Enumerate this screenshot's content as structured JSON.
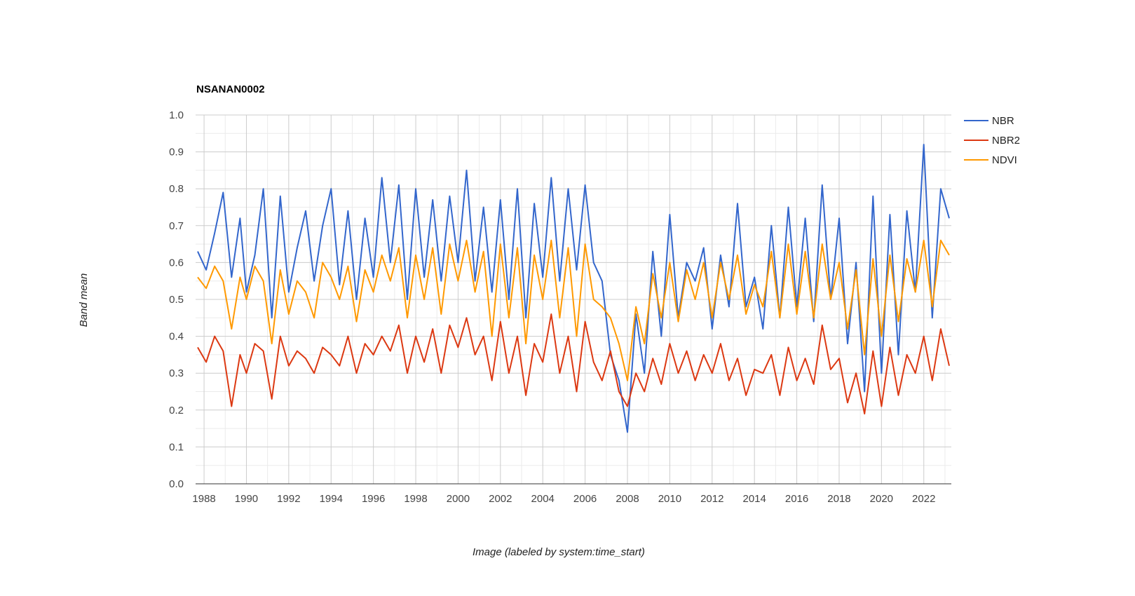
{
  "chart_data": {
    "type": "line",
    "title": "NSANAN0002",
    "xlabel": "Image (labeled by system:time_start)",
    "ylabel": "Band mean",
    "xlim": [
      1987.6,
      2023.3
    ],
    "ylim": [
      0.0,
      1.0
    ],
    "x_ticks": [
      "1988",
      "1990",
      "1992",
      "1994",
      "1996",
      "1998",
      "2000",
      "2002",
      "2004",
      "2006",
      "2008",
      "2010",
      "2012",
      "2014",
      "2016",
      "2018",
      "2020",
      "2022"
    ],
    "y_ticks": [
      "0.0",
      "0.1",
      "0.2",
      "0.3",
      "0.4",
      "0.5",
      "0.6",
      "0.7",
      "0.8",
      "0.9",
      "1.0"
    ],
    "grid": true,
    "legend_position": "right",
    "x": [
      1987.7,
      1988.1,
      1988.5,
      1988.9,
      1989.3,
      1989.7,
      1990.0,
      1990.4,
      1990.8,
      1991.2,
      1991.6,
      1992.0,
      1992.4,
      1992.8,
      1993.2,
      1993.6,
      1994.0,
      1994.4,
      1994.8,
      1995.2,
      1995.6,
      1996.0,
      1996.4,
      1996.8,
      1997.2,
      1997.6,
      1998.0,
      1998.4,
      1998.8,
      1999.2,
      1999.6,
      2000.0,
      2000.4,
      2000.8,
      2001.2,
      2001.6,
      2002.0,
      2002.4,
      2002.8,
      2003.2,
      2003.6,
      2004.0,
      2004.4,
      2004.8,
      2005.2,
      2005.6,
      2006.0,
      2006.4,
      2006.8,
      2007.2,
      2007.6,
      2008.0,
      2008.4,
      2008.8,
      2009.2,
      2009.6,
      2010.0,
      2010.4,
      2010.8,
      2011.2,
      2011.6,
      2012.0,
      2012.4,
      2012.8,
      2013.2,
      2013.6,
      2014.0,
      2014.4,
      2014.8,
      2015.2,
      2015.6,
      2016.0,
      2016.4,
      2016.8,
      2017.2,
      2017.6,
      2018.0,
      2018.4,
      2018.8,
      2019.2,
      2019.6,
      2020.0,
      2020.4,
      2020.8,
      2021.2,
      2021.6,
      2022.0,
      2022.4,
      2022.8,
      2023.2
    ],
    "series": [
      {
        "name": "NBR",
        "color": "#3366cc",
        "values": [
          0.63,
          0.58,
          0.68,
          0.79,
          0.56,
          0.72,
          0.52,
          0.62,
          0.8,
          0.45,
          0.78,
          0.52,
          0.64,
          0.74,
          0.55,
          0.7,
          0.8,
          0.54,
          0.74,
          0.5,
          0.72,
          0.56,
          0.83,
          0.6,
          0.81,
          0.5,
          0.8,
          0.56,
          0.77,
          0.55,
          0.78,
          0.6,
          0.85,
          0.55,
          0.75,
          0.52,
          0.77,
          0.5,
          0.8,
          0.45,
          0.76,
          0.56,
          0.83,
          0.55,
          0.8,
          0.58,
          0.81,
          0.6,
          0.55,
          0.35,
          0.28,
          0.14,
          0.46,
          0.3,
          0.63,
          0.4,
          0.73,
          0.45,
          0.6,
          0.55,
          0.64,
          0.42,
          0.62,
          0.48,
          0.76,
          0.48,
          0.56,
          0.42,
          0.7,
          0.45,
          0.75,
          0.48,
          0.72,
          0.44,
          0.81,
          0.5,
          0.72,
          0.38,
          0.6,
          0.25,
          0.78,
          0.3,
          0.73,
          0.35,
          0.74,
          0.52,
          0.92,
          0.45,
          0.8,
          0.72
        ]
      },
      {
        "name": "NBR2",
        "color": "#dc3912",
        "values": [
          0.37,
          0.33,
          0.4,
          0.36,
          0.21,
          0.35,
          0.3,
          0.38,
          0.36,
          0.23,
          0.4,
          0.32,
          0.36,
          0.34,
          0.3,
          0.37,
          0.35,
          0.32,
          0.4,
          0.3,
          0.38,
          0.35,
          0.4,
          0.36,
          0.43,
          0.3,
          0.4,
          0.33,
          0.42,
          0.3,
          0.43,
          0.37,
          0.45,
          0.35,
          0.4,
          0.28,
          0.44,
          0.3,
          0.4,
          0.24,
          0.38,
          0.33,
          0.46,
          0.3,
          0.4,
          0.25,
          0.44,
          0.33,
          0.28,
          0.36,
          0.25,
          0.21,
          0.3,
          0.25,
          0.34,
          0.27,
          0.38,
          0.3,
          0.36,
          0.28,
          0.35,
          0.3,
          0.38,
          0.28,
          0.34,
          0.24,
          0.31,
          0.3,
          0.35,
          0.24,
          0.37,
          0.28,
          0.34,
          0.27,
          0.43,
          0.31,
          0.34,
          0.22,
          0.3,
          0.19,
          0.36,
          0.21,
          0.37,
          0.24,
          0.35,
          0.3,
          0.4,
          0.28,
          0.42,
          0.32
        ]
      },
      {
        "name": "NDVI",
        "color": "#ff9900",
        "values": [
          0.56,
          0.53,
          0.59,
          0.55,
          0.42,
          0.56,
          0.5,
          0.59,
          0.55,
          0.38,
          0.58,
          0.46,
          0.55,
          0.52,
          0.45,
          0.6,
          0.56,
          0.5,
          0.59,
          0.44,
          0.58,
          0.52,
          0.62,
          0.55,
          0.64,
          0.45,
          0.62,
          0.5,
          0.64,
          0.46,
          0.65,
          0.55,
          0.66,
          0.52,
          0.63,
          0.4,
          0.65,
          0.45,
          0.64,
          0.38,
          0.62,
          0.5,
          0.66,
          0.45,
          0.64,
          0.4,
          0.65,
          0.5,
          0.48,
          0.45,
          0.38,
          0.28,
          0.48,
          0.38,
          0.57,
          0.45,
          0.6,
          0.44,
          0.58,
          0.5,
          0.6,
          0.45,
          0.6,
          0.5,
          0.62,
          0.46,
          0.54,
          0.48,
          0.63,
          0.45,
          0.65,
          0.46,
          0.63,
          0.45,
          0.65,
          0.5,
          0.6,
          0.42,
          0.58,
          0.35,
          0.61,
          0.4,
          0.62,
          0.44,
          0.61,
          0.52,
          0.66,
          0.48,
          0.66,
          0.62
        ]
      }
    ]
  }
}
